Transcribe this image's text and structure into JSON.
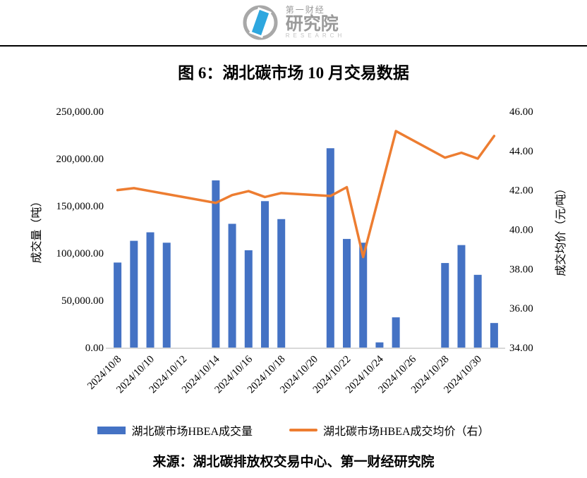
{
  "brand": {
    "name_line1": "第一财经",
    "name_line2": "研究院",
    "name_line3": "RESEARCH",
    "ring_color": "#a8a8a8",
    "mark_color": "#2ea7df"
  },
  "figure_title": "图 6：湖北碳市场 10 月交易数据",
  "source_note": "来源：湖北碳排放权交易中心、第一财经研究院",
  "colors": {
    "bar": "#4472C4",
    "line": "#ED7D31",
    "axis_line": "#D9D9D9",
    "text": "#000000"
  },
  "legend": {
    "items": [
      {
        "label": "湖北碳市场HBEA成交量",
        "swatch": "bar"
      },
      {
        "label": "湖北碳市场HBEA成交均价（右）",
        "swatch": "line"
      }
    ]
  },
  "chart_data": {
    "type": "bar+line combo (volume bars on left axis, price line on right axis)",
    "title": "图 6：湖北碳市场 10 月交易数据",
    "grid": "off",
    "x_axis": {
      "first_day": 8,
      "num_day_slots": 24,
      "tick_labels": [
        "2024/10/8",
        "2024/10/10",
        "2024/10/12",
        "2024/10/14",
        "2024/10/16",
        "2024/10/18",
        "2024/10/20",
        "2024/10/22",
        "2024/10/24",
        "2024/10/26",
        "2024/10/28",
        "2024/10/30"
      ],
      "label_rotation_deg": -45
    },
    "left_axis": {
      "title": "成交量（吨）",
      "min": 0,
      "max": 250000,
      "step": 50000,
      "tick_labels": [
        "250,000.00",
        "200,000.00",
        "150,000.00",
        "100,000.00",
        "50,000.00",
        "0.00"
      ]
    },
    "right_axis": {
      "title": "成交均价（元/吨）",
      "min": 34,
      "max": 46,
      "step": 2,
      "tick_labels": [
        "46.00",
        "44.00",
        "42.00",
        "40.00",
        "38.00",
        "36.00",
        "34.00"
      ]
    },
    "series": [
      {
        "name": "湖北碳市场HBEA成交量",
        "type": "bar",
        "axis": "left",
        "points": [
          {
            "date": "2024/10/8",
            "day": 8,
            "value": 90000
          },
          {
            "date": "2024/10/9",
            "day": 9,
            "value": 113000
          },
          {
            "date": "2024/10/10",
            "day": 10,
            "value": 122000
          },
          {
            "date": "2024/10/11",
            "day": 11,
            "value": 111000
          },
          {
            "date": "2024/10/14",
            "day": 14,
            "value": 177000
          },
          {
            "date": "2024/10/15",
            "day": 15,
            "value": 131000
          },
          {
            "date": "2024/10/16",
            "day": 16,
            "value": 103000
          },
          {
            "date": "2024/10/17",
            "day": 17,
            "value": 155000
          },
          {
            "date": "2024/10/18",
            "day": 18,
            "value": 136000
          },
          {
            "date": "2024/10/21",
            "day": 21,
            "value": 211000
          },
          {
            "date": "2024/10/22",
            "day": 22,
            "value": 115000
          },
          {
            "date": "2024/10/23",
            "day": 23,
            "value": 111000
          },
          {
            "date": "2024/10/24",
            "day": 24,
            "value": 5500
          },
          {
            "date": "2024/10/25",
            "day": 25,
            "value": 32000
          },
          {
            "date": "2024/10/28",
            "day": 28,
            "value": 89500
          },
          {
            "date": "2024/10/29",
            "day": 29,
            "value": 108500
          },
          {
            "date": "2024/10/30",
            "day": 30,
            "value": 77000
          },
          {
            "date": "2024/10/31",
            "day": 31,
            "value": 26000
          }
        ]
      },
      {
        "name": "湖北碳市场HBEA成交均价（右）",
        "type": "line",
        "axis": "right",
        "points": [
          {
            "date": "2024/10/8",
            "day": 8,
            "value": 42.0
          },
          {
            "date": "2024/10/9",
            "day": 9,
            "value": 42.1
          },
          {
            "date": "2024/10/10",
            "day": 10,
            "value": 41.95
          },
          {
            "date": "2024/10/11",
            "day": 11,
            "value": 41.8
          },
          {
            "date": "2024/10/14",
            "day": 14,
            "value": 41.35
          },
          {
            "date": "2024/10/15",
            "day": 15,
            "value": 41.75
          },
          {
            "date": "2024/10/16",
            "day": 16,
            "value": 41.95
          },
          {
            "date": "2024/10/17",
            "day": 17,
            "value": 41.65
          },
          {
            "date": "2024/10/18",
            "day": 18,
            "value": 41.85
          },
          {
            "date": "2024/10/21",
            "day": 21,
            "value": 41.7
          },
          {
            "date": "2024/10/22",
            "day": 22,
            "value": 42.15
          },
          {
            "date": "2024/10/23",
            "day": 23,
            "value": 38.6
          },
          {
            "date": "2024/10/24",
            "day": 24,
            "value": 41.8
          },
          {
            "date": "2024/10/25",
            "day": 25,
            "value": 45.0
          },
          {
            "date": "2024/10/28",
            "day": 28,
            "value": 43.65
          },
          {
            "date": "2024/10/29",
            "day": 29,
            "value": 43.9
          },
          {
            "date": "2024/10/30",
            "day": 30,
            "value": 43.6
          },
          {
            "date": "2024/10/31",
            "day": 31,
            "value": 44.75
          }
        ]
      }
    ]
  }
}
